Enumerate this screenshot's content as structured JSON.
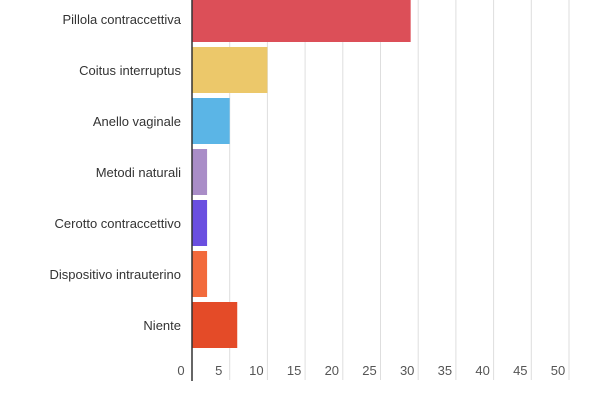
{
  "chart_data": {
    "type": "bar",
    "orientation": "horizontal",
    "categories": [
      "Pillola contraccettiva",
      "Coitus interruptus",
      "Anello vaginale",
      "Metodi naturali",
      "Cerotto contraccettivo",
      "Dispositivo intrauterino",
      "Niente"
    ],
    "values": [
      29,
      10,
      5,
      2,
      2,
      2,
      6
    ],
    "colors": [
      "#dc4f58",
      "#ecc86a",
      "#5bb5e6",
      "#a98dc7",
      "#6a4fe0",
      "#f26a3c",
      "#e44b28"
    ],
    "xlim": [
      0,
      50
    ],
    "xticks": [
      "0",
      "5",
      "10",
      "15",
      "20",
      "25",
      "30",
      "35",
      "40",
      "45",
      "50"
    ],
    "grid": true,
    "title": "",
    "xlabel": "",
    "ylabel": ""
  }
}
